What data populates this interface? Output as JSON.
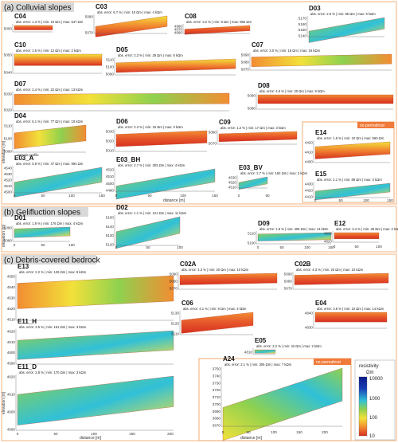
{
  "sections": [
    {
      "id": "a",
      "label": "(a) Colluvial slopes"
    },
    {
      "id": "b",
      "label": "(b) Gelifluction slopes"
    },
    {
      "id": "c",
      "label": "(c) Debris-covered bedrock"
    }
  ],
  "axis_labels": {
    "elevation": "elevation [m]",
    "distance": "distance [m]"
  },
  "no_permafrost_label": "no permafrost",
  "annotation_seismic": "seismic profile",
  "colorbar": {
    "title": "resistivity",
    "unit": "Ωm",
    "ticks": [
      "10000",
      "1000",
      "100",
      "10"
    ]
  },
  "profiles": [
    {
      "key": "C04",
      "name": "C04",
      "stats": "abs. error: 1.3 % | min: 10 Ωm | max: 547 Ωm",
      "yticks": [
        "5000"
      ]
    },
    {
      "key": "C03",
      "name": "C03",
      "stats": "abs. error: 6.7 % | min: 10 Ωm | max: 4 kΩm",
      "yticks": [
        "5080",
        "5070"
      ],
      "xticks": [
        "0",
        "50"
      ]
    },
    {
      "key": "C08",
      "name": "C08",
      "stats": "abs. error: 3.2 % | min: 9 Ωm | max: 955 Ωm",
      "yticks": [
        "4980",
        "4970",
        "4960"
      ]
    },
    {
      "key": "D03",
      "name": "D03",
      "stats": "abs. error: 2.5 % | min: 85 Ωm | max: 6 kΩm",
      "yticks": [
        "5170",
        "5160",
        "5150",
        "5140"
      ]
    },
    {
      "key": "C10",
      "name": "C10",
      "stats": "abs. error: 1.5 % | min: 12 Ωm | max: 2 kΩm",
      "yticks": [
        "5050",
        "5040"
      ]
    },
    {
      "key": "D05",
      "name": "D05",
      "stats": "abs. error: 2.3 % | min: 28 Ωm | max: 6 kΩm",
      "yticks": [
        "5110",
        "5100",
        "5090"
      ]
    },
    {
      "key": "C07",
      "name": "C07",
      "stats": "abs. error: 3.0 % | min: 18 Ωm | max: 19 kΩm",
      "yticks": [
        "5090",
        "5080",
        "5070"
      ]
    },
    {
      "key": "D07",
      "name": "D07",
      "stats": "abs. error: 2.4 % | min: 22 Ωm | max: 13 kΩm",
      "yticks": [
        "5030",
        "5020"
      ]
    },
    {
      "key": "D08",
      "name": "D08",
      "stats": "abs. error: 4.6 % | min: 20 Ωm | max: 9 kΩm",
      "yticks": [
        "5090",
        "5080"
      ]
    },
    {
      "key": "D04",
      "name": "D04",
      "stats": "abs. error: 6.1 % | min: 77 Ωm | max: 10 kΩm",
      "yticks": [
        "5110",
        "5100",
        "5090"
      ]
    },
    {
      "key": "D06",
      "name": "D06",
      "stats": "abs. error: 2.3 % | min: 15 Ωm | max: 3 kΩm",
      "yticks": [
        "5030",
        "5020",
        "5010"
      ]
    },
    {
      "key": "C09",
      "name": "C09",
      "stats": "abs. error: 1.2 % | min: 17 Ωm | max: 3 kΩm",
      "yticks": [
        "5080",
        "5070"
      ]
    },
    {
      "key": "E14",
      "name": "E14",
      "stats": "abs. error: 1.6 % | min: 10 Ωm | max: 560 Ωm",
      "yticks": [
        "4420",
        "4410",
        "4400"
      ]
    },
    {
      "key": "E03_A",
      "name": "E03_A",
      "stats": "abs. error: 5.9 % | min: 47 Ωm | max: 994 Ωm",
      "yticks": [
        "4540",
        "4530",
        "4520",
        "4510",
        "4500"
      ]
    },
    {
      "key": "E03_BH",
      "name": "E03_BH",
      "stats": "abs. error: 2.7 % | min: 303 Ωm | max: 4 kΩm",
      "yticks": [
        "4520",
        "4510",
        "4500",
        "4490"
      ]
    },
    {
      "key": "E03_BV",
      "name": "E03_BV",
      "stats": "abs. error: 2.7 % | min: 182 Ωm | max: 2 kΩm",
      "yticks": [
        "4530",
        "4520",
        "4510"
      ]
    },
    {
      "key": "E15",
      "name": "E15",
      "stats": "abs. error: 2.1 % | min: 89 Ωm | max: 3 kΩm",
      "yticks": [
        "4430",
        "4420",
        "4410"
      ]
    },
    {
      "key": "D01",
      "name": "D01",
      "stats": "abs. error: 1.9 % | min: 176 Ωm | max: 4 kΩm",
      "yticks": [
        "5090",
        "5080"
      ]
    },
    {
      "key": "D02",
      "name": "D02",
      "stats": "abs. error: 1.1 % | min: 121 Ωm | max: 11 kΩm",
      "yticks": [
        "5150",
        "5140",
        "5130",
        "5120"
      ]
    },
    {
      "key": "D09",
      "name": "D09",
      "stats": "abs. error: 1.8 % | min: 405 Ωm | max: 14 kΩm",
      "yticks": [
        "5110",
        "5100"
      ]
    },
    {
      "key": "E12",
      "name": "E12",
      "stats": "abs. error: 3.4 % | min: 36 Ωm | max: 2 kΩm",
      "yticks": [
        "4830",
        "4820"
      ]
    },
    {
      "key": "E13",
      "name": "E13",
      "stats": "abs. error: 2.2 % | min: 126 Ωm | max: 8 kΩm",
      "yticks": [
        "4550",
        "4540",
        "4530",
        "4520",
        "4510"
      ]
    },
    {
      "key": "C02A",
      "name": "C02A",
      "stats": "abs. error: 4.3 % | min: 20 Ωm | max: 10 kΩm",
      "yticks": [
        "5090",
        "5080",
        "5070"
      ]
    },
    {
      "key": "C02B",
      "name": "C02B",
      "stats": "abs. error: 4.3 % | min: 20 Ωm | max: 10 kΩm",
      "yticks": [
        "5090",
        "5080",
        "5070"
      ]
    },
    {
      "key": "E11_H",
      "name": "E11_H",
      "stats": "abs. error: 2.5 % | min: 161 Ωm | max: 3 kΩm",
      "yticks": [
        "4620",
        "4610",
        "4600",
        "4590"
      ]
    },
    {
      "key": "C06",
      "name": "C06",
      "stats": "abs. error: 4.1 % | min: 9 Ωm | max: 4 kΩm",
      "yticks": [
        "5130",
        "5120",
        "5110"
      ]
    },
    {
      "key": "E04",
      "name": "E04",
      "stats": "abs. error: 3.8 % | min: 10 Ωm | max: 14 kΩm",
      "yticks": [
        "4840",
        "4830"
      ]
    },
    {
      "key": "E05",
      "name": "E05",
      "stats": "abs. error: 2.2 % | min: 42 Ωm | max: 2 kΩm",
      "yticks": [
        "4810"
      ]
    },
    {
      "key": "E11_D",
      "name": "E11_D",
      "stats": "abs. error: 2.8 % | min: 170 Ωm | max: 3 kΩm",
      "yticks": [
        "4620",
        "4610",
        "4600",
        "4590"
      ]
    },
    {
      "key": "A24",
      "name": "A24",
      "stats": "abs. error: 2.1 % | min: 305 Ωm | max: 7 kΩm",
      "yticks": [
        "3750",
        "3740",
        "3730",
        "3720",
        "3710",
        "3700",
        "3690",
        "3680",
        "3670"
      ]
    }
  ],
  "xticks_common": [
    "0",
    "50",
    "100",
    "150"
  ],
  "xticks_a24": [
    "0",
    "50",
    "100",
    "150",
    "200"
  ],
  "xticks_e11": [
    "0",
    "50",
    "100",
    "150",
    "200"
  ],
  "colors": {
    "frame_orange": "#f0a060",
    "section_fill": "#d9d9d9",
    "red": "#d7301f",
    "orange": "#f28d32",
    "yellow": "#f2e13a",
    "green": "#8fd14f",
    "cyan": "#30c0d8",
    "blue": "#1b3fb5"
  }
}
